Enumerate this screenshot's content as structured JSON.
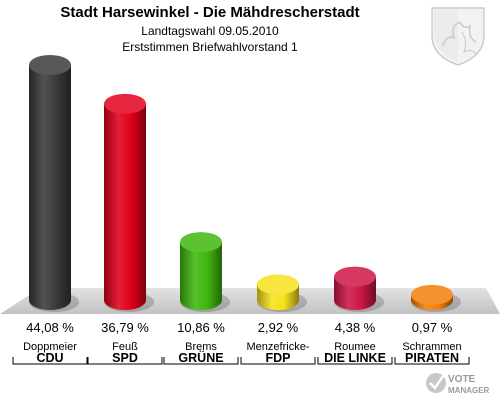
{
  "header": {
    "title": "Stadt Harsewinkel - Die Mähdrescherstadt",
    "subtitle1": "Landtagswahl 09.05.2010",
    "subtitle2": "Erststimmen Briefwahlvorstand 1"
  },
  "logo": {
    "line1": "VOTE",
    "line2": "MANAGER"
  },
  "chart_data": {
    "type": "bar",
    "categories": [
      "CDU",
      "SPD",
      "GRÜNE",
      "FDP",
      "DIE LINKE",
      "PIRATEN"
    ],
    "candidates": [
      "Doppmeier",
      "Feuß",
      "Brems",
      "Menzefricke-",
      "Roumee",
      "Schrammen"
    ],
    "values": [
      44.08,
      36.79,
      10.86,
      2.92,
      4.38,
      0.97
    ],
    "labels": [
      "44,08 %",
      "36,79 %",
      "10,86 %",
      "2,92 %",
      "4,38 %",
      "0,97 %"
    ],
    "colors": [
      "#3a3a3a",
      "#e0001a",
      "#3fb70d",
      "#f5e21b",
      "#cc1645",
      "#f47d0b"
    ],
    "ylim": [
      0,
      44.08
    ],
    "grid": false,
    "legend": "none"
  }
}
